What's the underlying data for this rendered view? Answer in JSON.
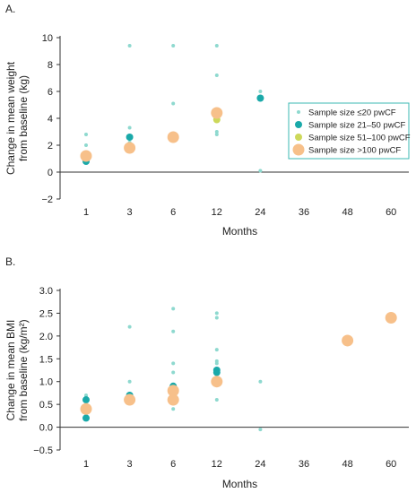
{
  "chart_data": [
    {
      "type": "scatter",
      "panel_label": "A.",
      "title": "",
      "xlabel": "Months",
      "ylabel_lines": [
        "Change in mean weight",
        "from baseline (kg)"
      ],
      "categories": [
        "1",
        "3",
        "6",
        "12",
        "24",
        "36",
        "48",
        "60"
      ],
      "yticks": [
        "10",
        "8",
        "6",
        "4",
        "2",
        "0",
        "−2"
      ],
      "ylim": [
        -2,
        10
      ],
      "grid": false,
      "legend": {
        "placement": "right",
        "border_color": "#3bb8b3",
        "entries": [
          {
            "label": "Sample size ≤20 pwCF",
            "color": "#8ed9cf",
            "size": "small"
          },
          {
            "label": "Sample size 21–50 pwCF",
            "color": "#1aa9a9",
            "size": "medium"
          },
          {
            "label": "Sample size 51–100 pwCF",
            "color": "#cdd85a",
            "size": "medium"
          },
          {
            "label": "Sample size >100 pwCF",
            "color": "#f7c08a",
            "size": "large"
          }
        ]
      },
      "series": [
        {
          "group": 0,
          "points": [
            {
              "x": "1",
              "y": 2.8
            },
            {
              "x": "1",
              "y": 2.0
            },
            {
              "x": "3",
              "y": 9.4
            },
            {
              "x": "3",
              "y": 3.3
            },
            {
              "x": "3",
              "y": 2.2
            },
            {
              "x": "6",
              "y": 9.4
            },
            {
              "x": "6",
              "y": 5.1
            },
            {
              "x": "12",
              "y": 9.4
            },
            {
              "x": "12",
              "y": 7.2
            },
            {
              "x": "12",
              "y": 3.0
            },
            {
              "x": "12",
              "y": 2.8
            },
            {
              "x": "24",
              "y": 6.0
            },
            {
              "x": "24",
              "y": 0.1
            }
          ]
        },
        {
          "group": 1,
          "points": [
            {
              "x": "1",
              "y": 0.8
            },
            {
              "x": "3",
              "y": 2.6
            },
            {
              "x": "24",
              "y": 5.5
            }
          ]
        },
        {
          "group": 2,
          "points": [
            {
              "x": "12",
              "y": 3.9
            }
          ]
        },
        {
          "group": 3,
          "points": [
            {
              "x": "1",
              "y": 1.2
            },
            {
              "x": "3",
              "y": 1.8
            },
            {
              "x": "6",
              "y": 2.6
            },
            {
              "x": "12",
              "y": 4.4
            }
          ]
        }
      ]
    },
    {
      "type": "scatter",
      "panel_label": "B.",
      "title": "",
      "xlabel": "Months",
      "ylabel_lines": [
        "Change in mean BMI",
        "from baseline (kg/m²)"
      ],
      "categories": [
        "1",
        "3",
        "6",
        "12",
        "24",
        "36",
        "48",
        "60"
      ],
      "yticks": [
        "3.0",
        "2.5",
        "2.0",
        "1.5",
        "1.0",
        "0.5",
        "0.0",
        "−0.5"
      ],
      "ylim": [
        -0.5,
        3.0
      ],
      "grid": false,
      "series": [
        {
          "group": 0,
          "points": [
            {
              "x": "1",
              "y": 0.7
            },
            {
              "x": "3",
              "y": 2.2
            },
            {
              "x": "3",
              "y": 1.0
            },
            {
              "x": "6",
              "y": 2.6
            },
            {
              "x": "6",
              "y": 2.1
            },
            {
              "x": "6",
              "y": 1.4
            },
            {
              "x": "6",
              "y": 1.2
            },
            {
              "x": "6",
              "y": 0.4
            },
            {
              "x": "12",
              "y": 2.5
            },
            {
              "x": "12",
              "y": 2.4
            },
            {
              "x": "12",
              "y": 1.7
            },
            {
              "x": "12",
              "y": 1.45
            },
            {
              "x": "12",
              "y": 1.4
            },
            {
              "x": "12",
              "y": 0.6
            },
            {
              "x": "24",
              "y": 1.0
            },
            {
              "x": "24",
              "y": -0.05
            }
          ]
        },
        {
          "group": 1,
          "points": [
            {
              "x": "1",
              "y": 0.6
            },
            {
              "x": "1",
              "y": 0.2
            },
            {
              "x": "3",
              "y": 0.7
            },
            {
              "x": "6",
              "y": 0.9
            },
            {
              "x": "6",
              "y": 0.85
            },
            {
              "x": "12",
              "y": 1.25
            },
            {
              "x": "12",
              "y": 1.2
            },
            {
              "x": "12",
              "y": 1.0
            }
          ]
        },
        {
          "group": 2,
          "points": [
            {
              "x": "12",
              "y": 1.0
            }
          ]
        },
        {
          "group": 3,
          "points": [
            {
              "x": "1",
              "y": 0.4
            },
            {
              "x": "3",
              "y": 0.6
            },
            {
              "x": "6",
              "y": 0.8
            },
            {
              "x": "6",
              "y": 0.6
            },
            {
              "x": "12",
              "y": 1.0
            },
            {
              "x": "48",
              "y": 1.9
            },
            {
              "x": "60",
              "y": 2.4
            }
          ]
        }
      ]
    }
  ]
}
